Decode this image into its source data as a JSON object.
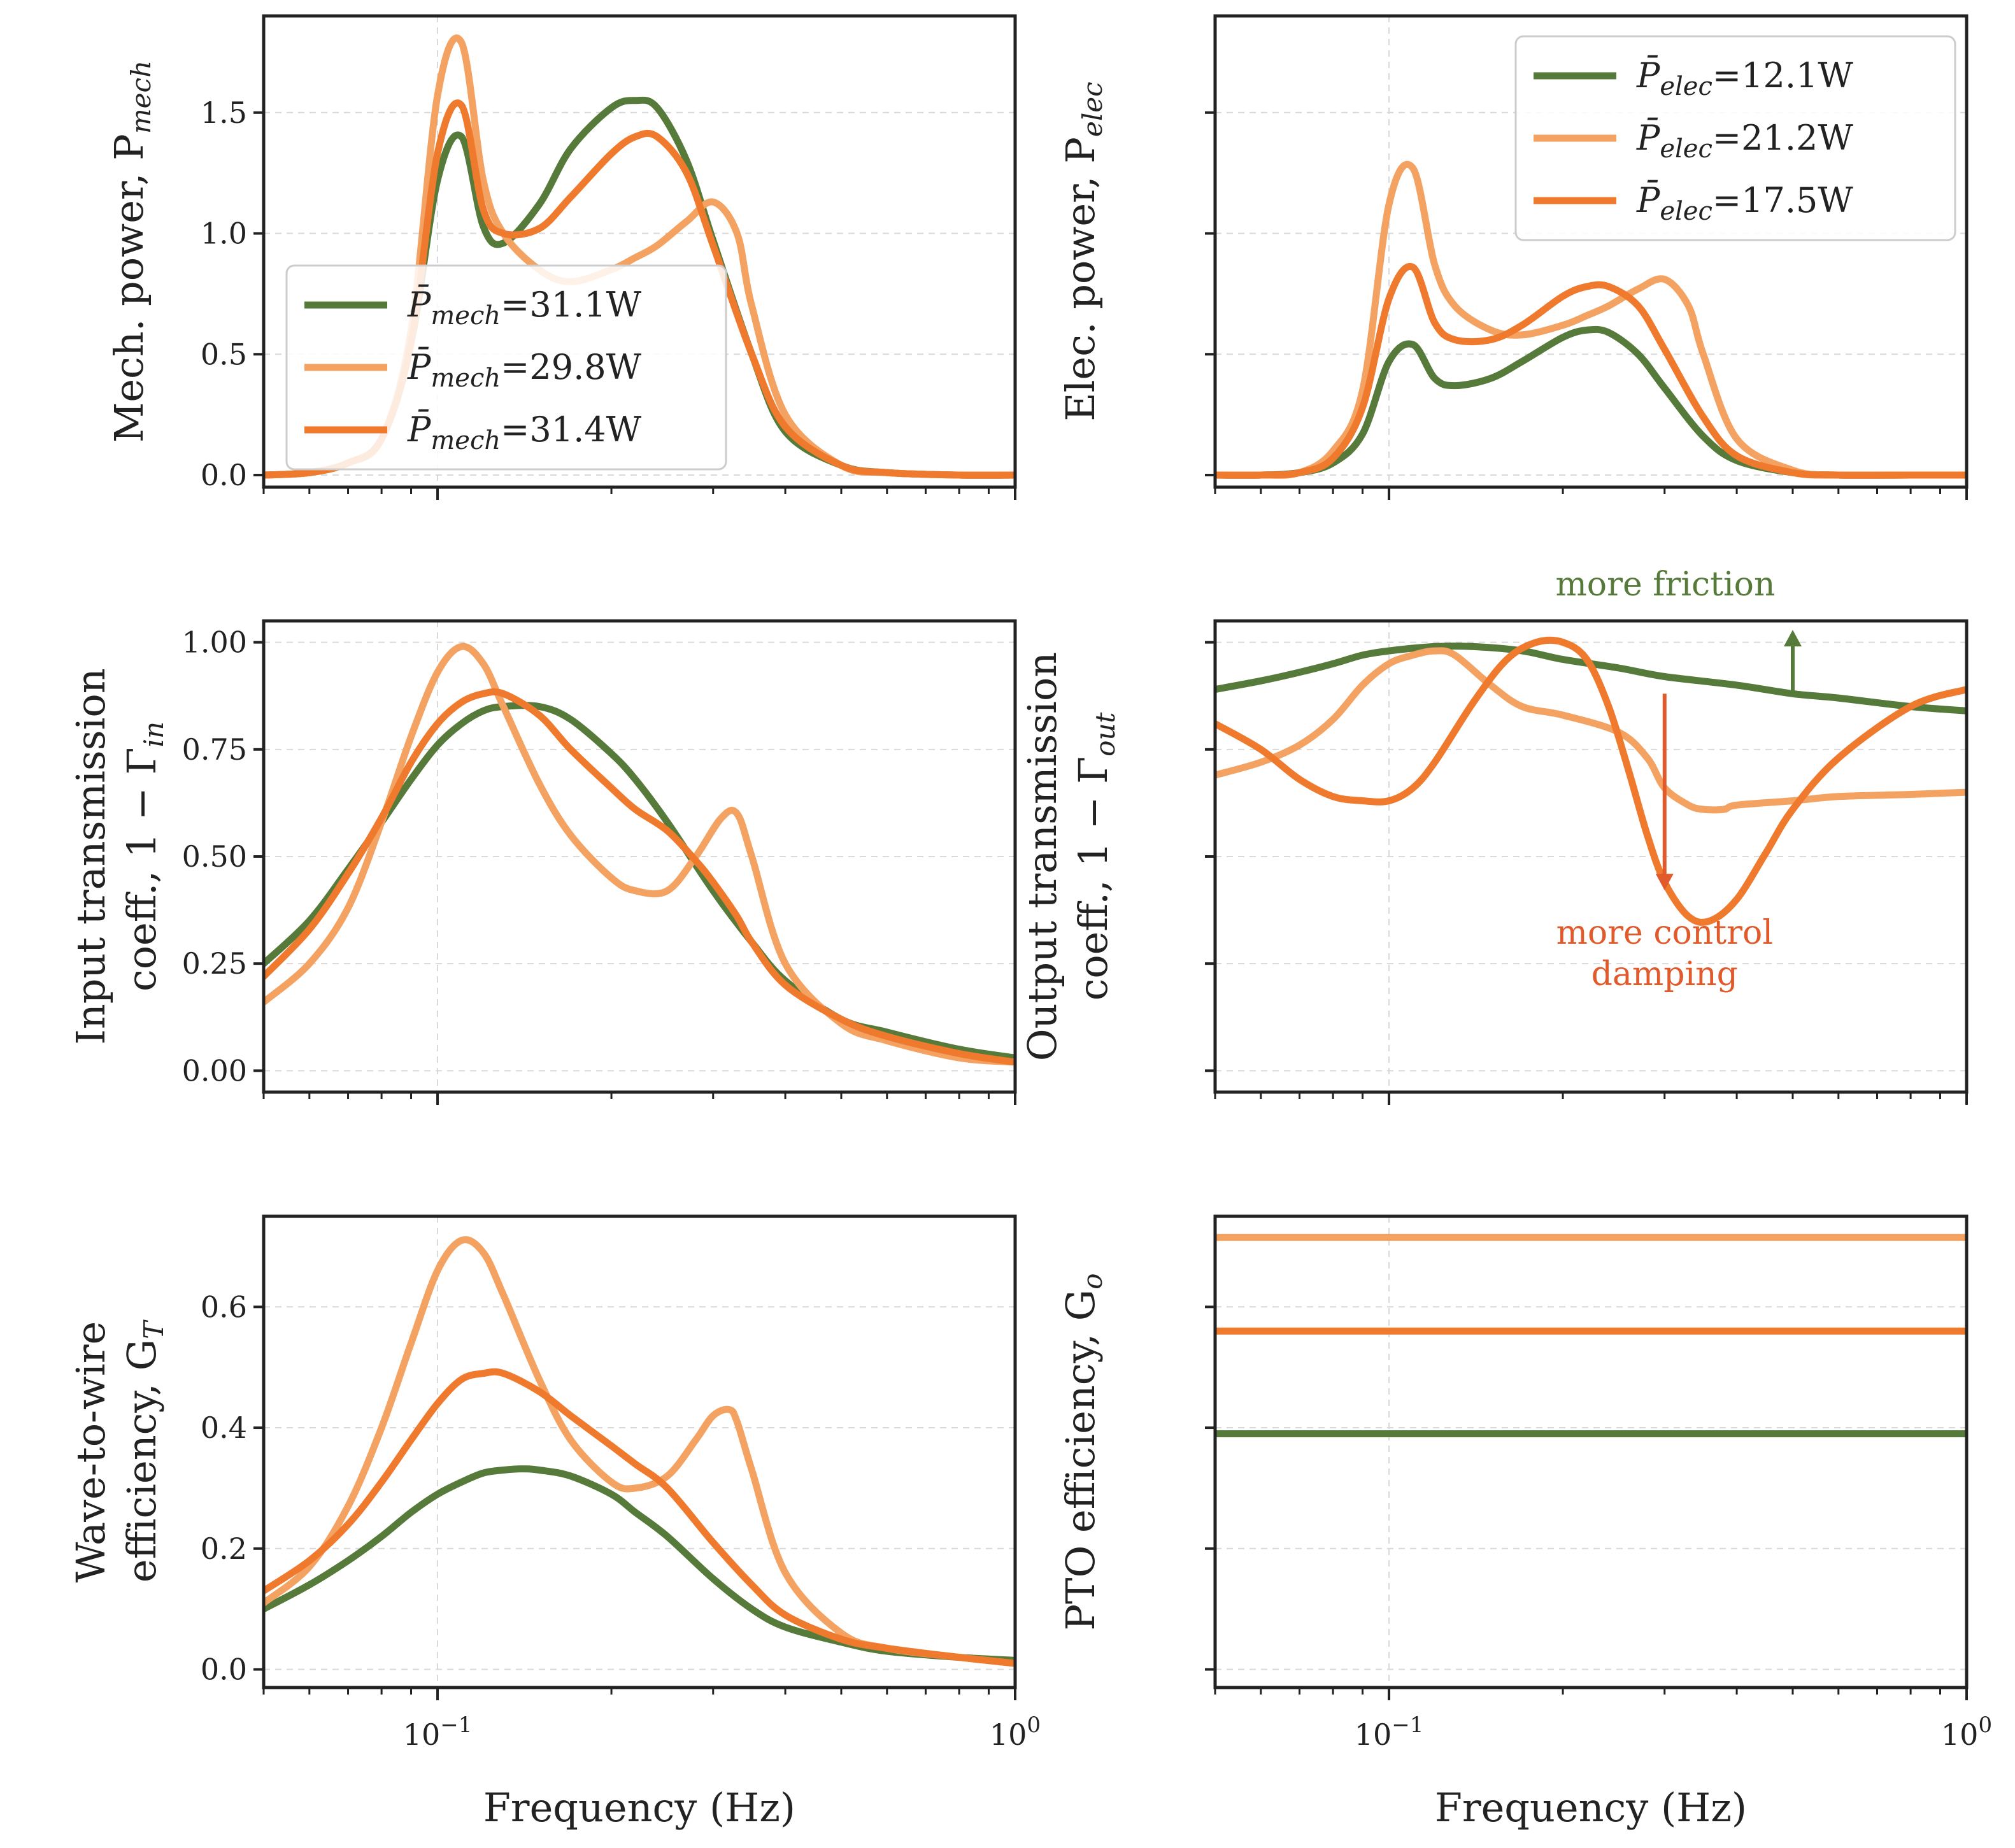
{
  "colors": {
    "green": "#557a3a",
    "light_orange": "#f4a261",
    "orange": "#ef7a2d",
    "red_anno": "#e05a2b"
  },
  "x_axis": {
    "xlabel": "Frequency (Hz)",
    "scale": "log",
    "xlim": [
      0.05,
      1.0
    ],
    "tick_10m1": "10",
    "tick_10m1_exp": "−1",
    "tick_100": "10",
    "tick_100_exp": "0"
  },
  "chart_data": [
    {
      "type": "line",
      "id": "mech_power",
      "ylabel": "Mech. power, P",
      "ylabel_sub": "mech",
      "ylim": [
        -0.05,
        1.9
      ],
      "yticks": [
        0.0,
        0.5,
        1.0,
        1.5
      ],
      "ytick_labels": [
        "0.0",
        "0.5",
        "1.0",
        "1.5"
      ],
      "legend": {
        "position": "lower-left",
        "entries": [
          {
            "prefix": "P̄",
            "sub": "mech",
            "text": "=31.1W"
          },
          {
            "prefix": "P̄",
            "sub": "mech",
            "text": "=29.8W"
          },
          {
            "prefix": "P̄",
            "sub": "mech",
            "text": "=31.4W"
          }
        ]
      },
      "series": [
        {
          "color_key": "green",
          "x": [
            0.05,
            0.06,
            0.07,
            0.08,
            0.09,
            0.1,
            0.11,
            0.12,
            0.13,
            0.15,
            0.17,
            0.2,
            0.22,
            0.24,
            0.27,
            0.3,
            0.35,
            0.4,
            0.5,
            0.6,
            0.8,
            1.0
          ],
          "y": [
            0,
            0.01,
            0.05,
            0.15,
            0.55,
            1.22,
            1.4,
            1.03,
            0.96,
            1.12,
            1.35,
            1.52,
            1.55,
            1.52,
            1.3,
            0.97,
            0.5,
            0.18,
            0.04,
            0.01,
            0,
            0
          ]
        },
        {
          "color_key": "light_orange",
          "x": [
            0.05,
            0.06,
            0.07,
            0.08,
            0.09,
            0.1,
            0.11,
            0.12,
            0.13,
            0.15,
            0.17,
            0.2,
            0.22,
            0.24,
            0.27,
            0.3,
            0.33,
            0.35,
            0.4,
            0.5,
            0.6,
            0.8,
            1.0
          ],
          "y": [
            0,
            0.01,
            0.05,
            0.15,
            0.6,
            1.57,
            1.79,
            1.22,
            1.0,
            0.85,
            0.8,
            0.85,
            0.9,
            0.95,
            1.05,
            1.13,
            1.0,
            0.7,
            0.25,
            0.04,
            0.01,
            0,
            0
          ]
        },
        {
          "color_key": "orange",
          "x": [
            0.05,
            0.06,
            0.07,
            0.08,
            0.09,
            0.1,
            0.11,
            0.12,
            0.13,
            0.15,
            0.17,
            0.2,
            0.22,
            0.24,
            0.27,
            0.3,
            0.35,
            0.4,
            0.5,
            0.6,
            0.8,
            1.0
          ],
          "y": [
            0,
            0.01,
            0.05,
            0.15,
            0.55,
            1.33,
            1.53,
            1.1,
            1.0,
            1.02,
            1.15,
            1.33,
            1.4,
            1.4,
            1.25,
            0.95,
            0.5,
            0.2,
            0.04,
            0.01,
            0,
            0
          ]
        }
      ]
    },
    {
      "type": "line",
      "id": "elec_power",
      "ylabel": "Elec. power, P",
      "ylabel_sub": "elec",
      "ylim": [
        -0.05,
        1.9
      ],
      "yticks": [
        0.0,
        0.5,
        1.0,
        1.5
      ],
      "ytick_labels": [
        "",
        "",
        "",
        ""
      ],
      "legend": {
        "position": "top-right",
        "entries": [
          {
            "prefix": "P̄",
            "sub": "elec",
            "text": "=12.1W"
          },
          {
            "prefix": "P̄",
            "sub": "elec",
            "text": "=21.2W"
          },
          {
            "prefix": "P̄",
            "sub": "elec",
            "text": "=17.5W"
          }
        ]
      },
      "series": [
        {
          "color_key": "green",
          "x": [
            0.05,
            0.06,
            0.07,
            0.08,
            0.09,
            0.1,
            0.11,
            0.12,
            0.13,
            0.15,
            0.17,
            0.2,
            0.22,
            0.24,
            0.27,
            0.3,
            0.35,
            0.4,
            0.5,
            0.6,
            0.8,
            1.0
          ],
          "y": [
            0,
            0,
            0.01,
            0.05,
            0.17,
            0.47,
            0.54,
            0.4,
            0.37,
            0.4,
            0.47,
            0.57,
            0.6,
            0.59,
            0.5,
            0.36,
            0.16,
            0.06,
            0.01,
            0,
            0,
            0
          ]
        },
        {
          "color_key": "light_orange",
          "x": [
            0.05,
            0.06,
            0.07,
            0.08,
            0.09,
            0.1,
            0.11,
            0.12,
            0.13,
            0.15,
            0.17,
            0.2,
            0.22,
            0.24,
            0.27,
            0.3,
            0.33,
            0.35,
            0.4,
            0.5,
            0.6,
            0.8,
            1.0
          ],
          "y": [
            0,
            0,
            0.01,
            0.1,
            0.35,
            1.12,
            1.27,
            0.87,
            0.7,
            0.6,
            0.58,
            0.62,
            0.66,
            0.7,
            0.77,
            0.81,
            0.7,
            0.5,
            0.15,
            0.02,
            0,
            0,
            0
          ]
        },
        {
          "color_key": "orange",
          "x": [
            0.05,
            0.06,
            0.07,
            0.08,
            0.09,
            0.1,
            0.11,
            0.12,
            0.13,
            0.15,
            0.17,
            0.2,
            0.22,
            0.24,
            0.27,
            0.3,
            0.35,
            0.4,
            0.5,
            0.6,
            0.8,
            1.0
          ],
          "y": [
            0,
            0,
            0.01,
            0.07,
            0.28,
            0.73,
            0.86,
            0.63,
            0.56,
            0.56,
            0.62,
            0.74,
            0.78,
            0.78,
            0.7,
            0.52,
            0.24,
            0.08,
            0.01,
            0,
            0,
            0
          ]
        }
      ]
    },
    {
      "type": "line",
      "id": "input_transmission",
      "ylabel_line1": "Input transmission",
      "ylabel_line2": "coeff., 1 − Γ",
      "ylabel_sub": "in",
      "ylim": [
        -0.05,
        1.05
      ],
      "yticks": [
        0.0,
        0.25,
        0.5,
        0.75,
        1.0
      ],
      "ytick_labels": [
        "0.00",
        "0.25",
        "0.50",
        "0.75",
        "1.00"
      ],
      "series": [
        {
          "color_key": "green",
          "x": [
            0.05,
            0.06,
            0.07,
            0.08,
            0.09,
            0.1,
            0.11,
            0.12,
            0.13,
            0.15,
            0.17,
            0.2,
            0.22,
            0.25,
            0.3,
            0.35,
            0.4,
            0.5,
            0.6,
            0.8,
            1.0
          ],
          "y": [
            0.25,
            0.35,
            0.47,
            0.58,
            0.68,
            0.76,
            0.81,
            0.84,
            0.85,
            0.85,
            0.82,
            0.74,
            0.68,
            0.58,
            0.42,
            0.3,
            0.21,
            0.12,
            0.09,
            0.05,
            0.03
          ]
        },
        {
          "color_key": "light_orange",
          "x": [
            0.05,
            0.06,
            0.07,
            0.08,
            0.09,
            0.1,
            0.11,
            0.12,
            0.13,
            0.15,
            0.17,
            0.2,
            0.22,
            0.25,
            0.28,
            0.31,
            0.33,
            0.35,
            0.4,
            0.5,
            0.6,
            0.8,
            1.0
          ],
          "y": [
            0.16,
            0.25,
            0.38,
            0.58,
            0.78,
            0.93,
            0.99,
            0.95,
            0.85,
            0.67,
            0.55,
            0.45,
            0.42,
            0.42,
            0.5,
            0.59,
            0.6,
            0.5,
            0.25,
            0.11,
            0.07,
            0.03,
            0.02
          ]
        },
        {
          "color_key": "orange",
          "x": [
            0.05,
            0.06,
            0.07,
            0.08,
            0.09,
            0.1,
            0.11,
            0.12,
            0.13,
            0.15,
            0.17,
            0.2,
            0.22,
            0.25,
            0.28,
            0.3,
            0.33,
            0.35,
            0.4,
            0.5,
            0.6,
            0.8,
            1.0
          ],
          "y": [
            0.22,
            0.33,
            0.46,
            0.59,
            0.72,
            0.81,
            0.86,
            0.88,
            0.88,
            0.83,
            0.75,
            0.66,
            0.61,
            0.56,
            0.49,
            0.44,
            0.36,
            0.3,
            0.2,
            0.12,
            0.08,
            0.04,
            0.02
          ]
        }
      ]
    },
    {
      "type": "line",
      "id": "output_transmission",
      "ylabel_line1": "Output transmission",
      "ylabel_line2": "coeff., 1 − Γ",
      "ylabel_sub": "out",
      "ylim": [
        -0.05,
        1.05
      ],
      "yticks": [
        0.0,
        0.25,
        0.5,
        0.75,
        1.0
      ],
      "ytick_labels": [
        "",
        "",
        "",
        "",
        ""
      ],
      "annotations": [
        {
          "text": "more friction",
          "color_key": "green",
          "arrow": "up",
          "x": 0.5
        },
        {
          "text_line1": "more control",
          "text_line2": "damping",
          "color_key": "red_anno",
          "arrow": "down",
          "x": 0.3
        }
      ],
      "series": [
        {
          "color_key": "green",
          "x": [
            0.05,
            0.06,
            0.07,
            0.08,
            0.09,
            0.1,
            0.12,
            0.14,
            0.17,
            0.2,
            0.25,
            0.3,
            0.4,
            0.5,
            0.6,
            0.8,
            1.0
          ],
          "y": [
            0.89,
            0.91,
            0.93,
            0.95,
            0.97,
            0.98,
            0.99,
            0.99,
            0.98,
            0.96,
            0.94,
            0.92,
            0.9,
            0.88,
            0.87,
            0.85,
            0.84
          ]
        },
        {
          "color_key": "light_orange",
          "x": [
            0.05,
            0.06,
            0.07,
            0.08,
            0.09,
            0.1,
            0.11,
            0.12,
            0.13,
            0.15,
            0.17,
            0.2,
            0.25,
            0.28,
            0.3,
            0.33,
            0.35,
            0.38,
            0.4,
            0.5,
            0.6,
            0.8,
            1.0
          ],
          "y": [
            0.69,
            0.72,
            0.76,
            0.82,
            0.9,
            0.95,
            0.97,
            0.98,
            0.97,
            0.9,
            0.85,
            0.83,
            0.79,
            0.73,
            0.66,
            0.62,
            0.61,
            0.61,
            0.62,
            0.63,
            0.64,
            0.645,
            0.65
          ]
        },
        {
          "color_key": "orange",
          "x": [
            0.05,
            0.06,
            0.07,
            0.08,
            0.09,
            0.1,
            0.11,
            0.12,
            0.14,
            0.16,
            0.18,
            0.2,
            0.22,
            0.24,
            0.26,
            0.28,
            0.3,
            0.33,
            0.36,
            0.4,
            0.45,
            0.5,
            0.6,
            0.8,
            1.0
          ],
          "y": [
            0.81,
            0.75,
            0.68,
            0.64,
            0.63,
            0.63,
            0.66,
            0.72,
            0.86,
            0.96,
            1.0,
            1.0,
            0.96,
            0.85,
            0.7,
            0.55,
            0.44,
            0.36,
            0.35,
            0.4,
            0.51,
            0.61,
            0.73,
            0.85,
            0.89
          ]
        }
      ]
    },
    {
      "type": "line",
      "id": "wave_to_wire",
      "ylabel_line1": "Wave-to-wire",
      "ylabel_line2": "efficiency, G",
      "ylabel_sub": "T",
      "ylim": [
        -0.03,
        0.75
      ],
      "yticks": [
        0.0,
        0.2,
        0.4,
        0.6
      ],
      "ytick_labels": [
        "0.0",
        "0.2",
        "0.4",
        "0.6"
      ],
      "series": [
        {
          "color_key": "green",
          "x": [
            0.05,
            0.06,
            0.07,
            0.08,
            0.09,
            0.1,
            0.11,
            0.12,
            0.13,
            0.14,
            0.15,
            0.17,
            0.2,
            0.22,
            0.25,
            0.3,
            0.35,
            0.4,
            0.5,
            0.6,
            0.8,
            1.0
          ],
          "y": [
            0.1,
            0.14,
            0.18,
            0.22,
            0.26,
            0.29,
            0.31,
            0.325,
            0.33,
            0.332,
            0.33,
            0.32,
            0.29,
            0.26,
            0.22,
            0.15,
            0.1,
            0.07,
            0.045,
            0.03,
            0.02,
            0.015
          ]
        },
        {
          "color_key": "light_orange",
          "x": [
            0.05,
            0.06,
            0.07,
            0.08,
            0.09,
            0.1,
            0.11,
            0.12,
            0.13,
            0.15,
            0.17,
            0.2,
            0.22,
            0.25,
            0.28,
            0.3,
            0.32,
            0.33,
            0.35,
            0.4,
            0.5,
            0.6,
            0.8,
            1.0
          ],
          "y": [
            0.11,
            0.17,
            0.27,
            0.4,
            0.54,
            0.66,
            0.71,
            0.69,
            0.62,
            0.48,
            0.38,
            0.31,
            0.3,
            0.32,
            0.38,
            0.42,
            0.43,
            0.41,
            0.33,
            0.16,
            0.06,
            0.035,
            0.02,
            0.01
          ]
        },
        {
          "color_key": "orange",
          "x": [
            0.05,
            0.06,
            0.07,
            0.08,
            0.09,
            0.1,
            0.11,
            0.12,
            0.13,
            0.15,
            0.17,
            0.2,
            0.22,
            0.25,
            0.3,
            0.35,
            0.4,
            0.5,
            0.6,
            0.8,
            1.0
          ],
          "y": [
            0.13,
            0.18,
            0.24,
            0.31,
            0.38,
            0.44,
            0.48,
            0.49,
            0.49,
            0.46,
            0.42,
            0.37,
            0.34,
            0.3,
            0.21,
            0.14,
            0.09,
            0.05,
            0.035,
            0.02,
            0.01
          ]
        }
      ]
    },
    {
      "type": "line",
      "id": "pto_efficiency",
      "ylabel": "PTO efficiency, G",
      "ylabel_sub": "o",
      "ylim": [
        -0.03,
        0.75
      ],
      "yticks": [
        0.0,
        0.2,
        0.4,
        0.6
      ],
      "ytick_labels": [
        "",
        "",
        "",
        ""
      ],
      "series": [
        {
          "color_key": "green",
          "x": [
            0.05,
            1.0
          ],
          "y": [
            0.39,
            0.39
          ]
        },
        {
          "color_key": "light_orange",
          "x": [
            0.05,
            1.0
          ],
          "y": [
            0.715,
            0.715
          ]
        },
        {
          "color_key": "orange",
          "x": [
            0.05,
            1.0
          ],
          "y": [
            0.56,
            0.56
          ]
        }
      ]
    }
  ]
}
